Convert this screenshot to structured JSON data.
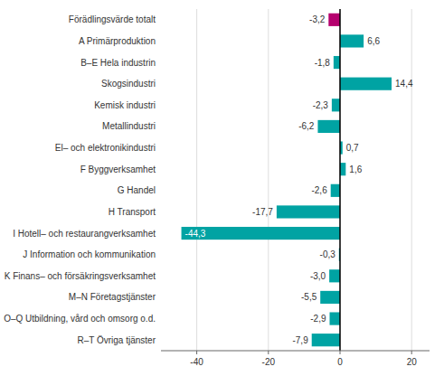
{
  "chart_data": {
    "type": "bar",
    "orientation": "horizontal",
    "categories": [
      "Förädlingsvärde totalt",
      "A Primärproduktion",
      "B–E Hela industrin",
      "Skogsindustri",
      "Kemisk industri",
      "Metallindustri",
      "El– och elektronikindustri",
      "F Byggverksamhet",
      "G Handel",
      "H Transport",
      "I Hotell– och restaurangverksamhet",
      "J Information och kommunikation",
      "K Finans– och försäkringsverksamhet",
      "M–N Företagstjänster",
      "O–Q Utbildning, vård och omsorg o.d.",
      "R–T Övriga tjänster"
    ],
    "values": [
      -3.2,
      6.6,
      -1.8,
      14.4,
      -2.3,
      -6.2,
      0.7,
      1.6,
      -2.6,
      -17.7,
      -44.3,
      -0.3,
      -3.0,
      -5.5,
      -2.9,
      -7.9
    ],
    "value_labels": [
      "-3,2",
      "6,6",
      "-1,8",
      "14,4",
      "-2,3",
      "-6,2",
      "0,7",
      "1,6",
      "-2,6",
      "-17,7",
      "-44,3",
      "-0,3",
      "-3,0",
      "-5,5",
      "-2,9",
      "-7,9"
    ],
    "colors": [
      "#b5006e",
      "#00a3a3",
      "#00a3a3",
      "#00a3a3",
      "#00a3a3",
      "#00a3a3",
      "#00a3a3",
      "#00a3a3",
      "#00a3a3",
      "#00a3a3",
      "#00a3a3",
      "#00a3a3",
      "#00a3a3",
      "#00a3a3",
      "#00a3a3",
      "#00a3a3"
    ],
    "xlim": [
      -50,
      25
    ],
    "xticks": [
      -40,
      -20,
      0,
      20
    ],
    "grid": true,
    "data_labels": true
  }
}
